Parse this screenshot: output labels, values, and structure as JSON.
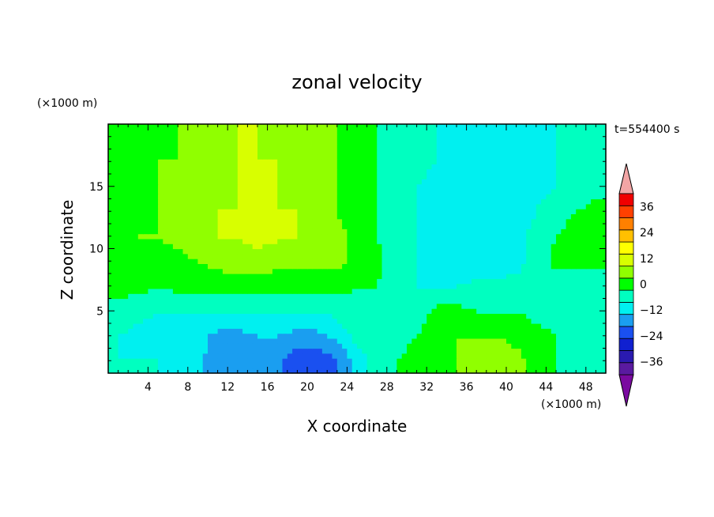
{
  "chart_data": {
    "type": "heatmap",
    "title": "zonal velocity",
    "time_label": "t=554400 s",
    "xlabel": "X coordinate",
    "ylabel": "Z coordinate",
    "x_unit": "(×1000 m)",
    "y_unit": "(×1000 m)",
    "xlim": [
      0,
      50
    ],
    "ylim": [
      0,
      20
    ],
    "x_ticks": [
      4,
      8,
      12,
      16,
      20,
      24,
      28,
      32,
      36,
      40,
      44,
      48
    ],
    "y_ticks": [
      5,
      10,
      15
    ],
    "x": [
      1,
      3,
      5,
      7,
      9,
      11,
      13,
      15,
      17,
      19,
      21,
      23,
      25,
      27,
      29,
      31,
      33,
      35,
      37,
      39,
      41,
      43,
      45,
      47,
      49
    ],
    "y": [
      1,
      3,
      5,
      7,
      9,
      11,
      13,
      15,
      17,
      19
    ],
    "z": [
      [
        -6,
        -6,
        -6,
        -7,
        -10,
        -16,
        -16,
        -14,
        -16,
        -22,
        -23,
        -18,
        -10,
        -2,
        0,
        2,
        4,
        6,
        10,
        10,
        8,
        4,
        0,
        -2,
        -2
      ],
      [
        -6,
        -8,
        -8,
        -10,
        -10,
        -14,
        -14,
        -12,
        -12,
        -14,
        -14,
        -10,
        -4,
        0,
        -2,
        0,
        4,
        6,
        6,
        6,
        4,
        2,
        0,
        0,
        -2
      ],
      [
        -2,
        -4,
        -6,
        -6,
        -6,
        -6,
        -6,
        -6,
        -6,
        -6,
        -6,
        -4,
        -2,
        0,
        -2,
        -4,
        2,
        2,
        0,
        0,
        0,
        -2,
        -2,
        -6,
        -4
      ],
      [
        2,
        2,
        0,
        2,
        2,
        2,
        2,
        2,
        2,
        2,
        2,
        2,
        0,
        0,
        -4,
        -6,
        -8,
        -6,
        -4,
        -4,
        -4,
        -4,
        -4,
        -4,
        -4
      ],
      [
        4,
        6,
        4,
        4,
        6,
        8,
        10,
        10,
        8,
        8,
        8,
        8,
        4,
        2,
        -4,
        -6,
        -8,
        -10,
        -12,
        -10,
        -8,
        -4,
        2,
        2,
        2
      ],
      [
        4,
        6,
        6,
        8,
        10,
        12,
        12,
        14,
        13,
        12,
        10,
        8,
        4,
        0,
        -4,
        -6,
        -8,
        -10,
        -12,
        -10,
        -8,
        -4,
        0,
        2,
        2
      ],
      [
        2,
        4,
        6,
        8,
        10,
        12,
        12,
        12,
        12,
        12,
        10,
        6,
        2,
        0,
        -4,
        -6,
        -8,
        -10,
        -12,
        -12,
        -10,
        -6,
        -2,
        0,
        2
      ],
      [
        2,
        4,
        6,
        8,
        8,
        10,
        12,
        12,
        12,
        10,
        8,
        6,
        2,
        0,
        -4,
        -6,
        -8,
        -10,
        -12,
        -12,
        -10,
        -8,
        -6,
        -4,
        -2
      ],
      [
        2,
        4,
        6,
        6,
        8,
        10,
        12,
        12,
        12,
        10,
        8,
        6,
        2,
        0,
        -2,
        -4,
        -6,
        -8,
        -10,
        -12,
        -10,
        -8,
        -6,
        -4,
        -2
      ],
      [
        2,
        4,
        4,
        6,
        8,
        10,
        12,
        12,
        10,
        8,
        8,
        6,
        2,
        0,
        -2,
        -4,
        -6,
        -8,
        -10,
        -10,
        -10,
        -8,
        -6,
        -4,
        -2
      ]
    ],
    "colorbar": {
      "levels": [
        -42,
        -36,
        -30,
        -24,
        -18,
        -12,
        -6,
        0,
        6,
        12,
        18,
        24,
        30,
        36,
        42
      ],
      "tick_labels": [
        "36",
        "24",
        "12",
        "0",
        "−12",
        "−24",
        "−36"
      ],
      "tick_values": [
        36,
        24,
        12,
        0,
        -12,
        -24,
        -36
      ],
      "colors": [
        "#5a1aa0",
        "#2a1ab0",
        "#1020d0",
        "#1a50f0",
        "#1a9ef0",
        "#00f0f0",
        "#00ffc0",
        "#00ff00",
        "#90ff00",
        "#d8ff00",
        "#ffff00",
        "#ffc000",
        "#ff8000",
        "#ff4000",
        "#f00000"
      ],
      "under_color": "#7a0aa0",
      "over_color": "#f2a5a5"
    }
  }
}
